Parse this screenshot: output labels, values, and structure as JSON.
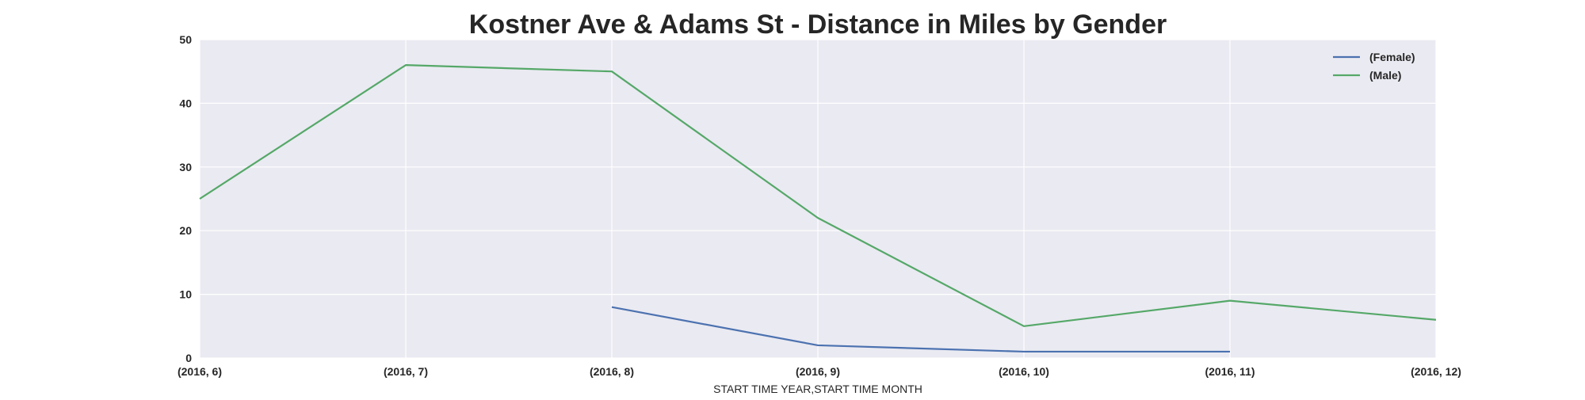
{
  "chart_data": {
    "type": "line",
    "title": "Kostner Ave & Adams St - Distance in Miles by Gender",
    "xlabel": "START TIME YEAR,START TIME MONTH",
    "ylabel": "",
    "categories": [
      "(2016, 6)",
      "(2016, 7)",
      "(2016, 8)",
      "(2016, 9)",
      "(2016, 10)",
      "(2016, 11)",
      "(2016, 12)"
    ],
    "ylim": [
      0,
      50
    ],
    "yticks": [
      0,
      10,
      20,
      30,
      40,
      50
    ],
    "grid": true,
    "legend_position": "top-right",
    "series": [
      {
        "name": "(Female)",
        "color": "#4c72b0",
        "values": [
          null,
          null,
          8,
          2,
          1,
          1,
          null
        ]
      },
      {
        "name": "(Male)",
        "color": "#55a868",
        "values": [
          25,
          46,
          45,
          22,
          5,
          9,
          6
        ]
      }
    ],
    "background_color": "#eaeaf2",
    "grid_color": "#ffffff"
  }
}
